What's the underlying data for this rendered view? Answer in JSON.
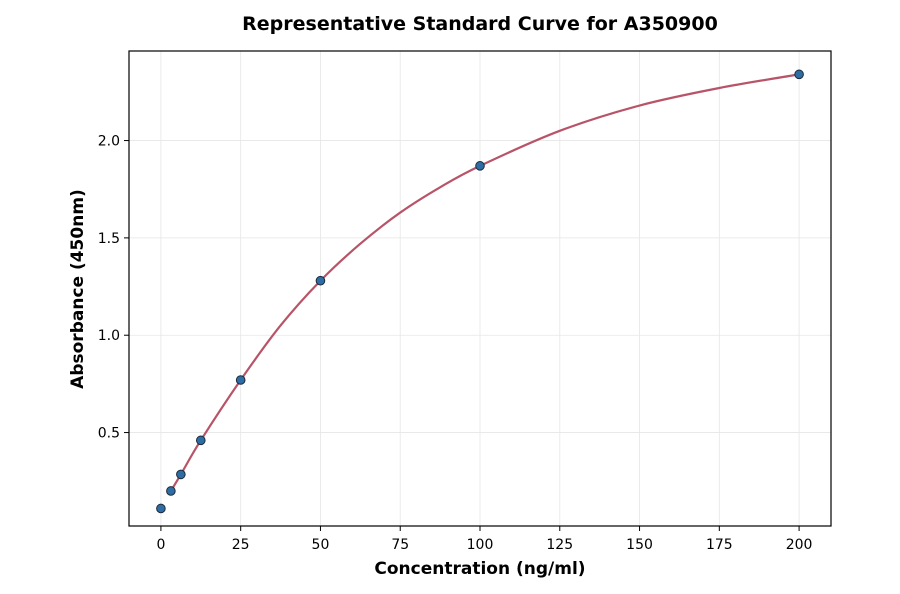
{
  "chart_data": {
    "type": "scatter",
    "title": "Representative Standard Curve for A350900",
    "xlabel": "Concentration (ng/ml)",
    "ylabel": "Absorbance (450nm)",
    "xlim": [
      -10,
      210
    ],
    "ylim": [
      0.02,
      2.46
    ],
    "x_ticks": [
      0,
      25,
      50,
      75,
      100,
      125,
      150,
      175,
      200
    ],
    "y_ticks": [
      0.5,
      1.0,
      1.5,
      2.0
    ],
    "x_tick_labels": [
      "0",
      "25",
      "50",
      "75",
      "100",
      "125",
      "150",
      "175",
      "200"
    ],
    "y_tick_labels": [
      "0.5",
      "1.0",
      "1.5",
      "2.0"
    ],
    "grid": true,
    "series": [
      {
        "kind": "points",
        "x": [
          0,
          3.125,
          6.25,
          12.5,
          25,
          50,
          100,
          200
        ],
        "y": [
          0.11,
          0.2,
          0.285,
          0.46,
          0.77,
          1.28,
          1.87,
          2.34
        ],
        "color": "#2e6da4"
      },
      {
        "kind": "fit-curve",
        "x": [
          3.125,
          6.25,
          12.5,
          25,
          37.5,
          50,
          62.5,
          75,
          87.5,
          100,
          125,
          150,
          175,
          200
        ],
        "y": [
          0.2,
          0.285,
          0.46,
          0.77,
          1.05,
          1.28,
          1.47,
          1.63,
          1.76,
          1.87,
          2.05,
          2.18,
          2.27,
          2.34
        ],
        "color": "#b85468"
      }
    ]
  }
}
